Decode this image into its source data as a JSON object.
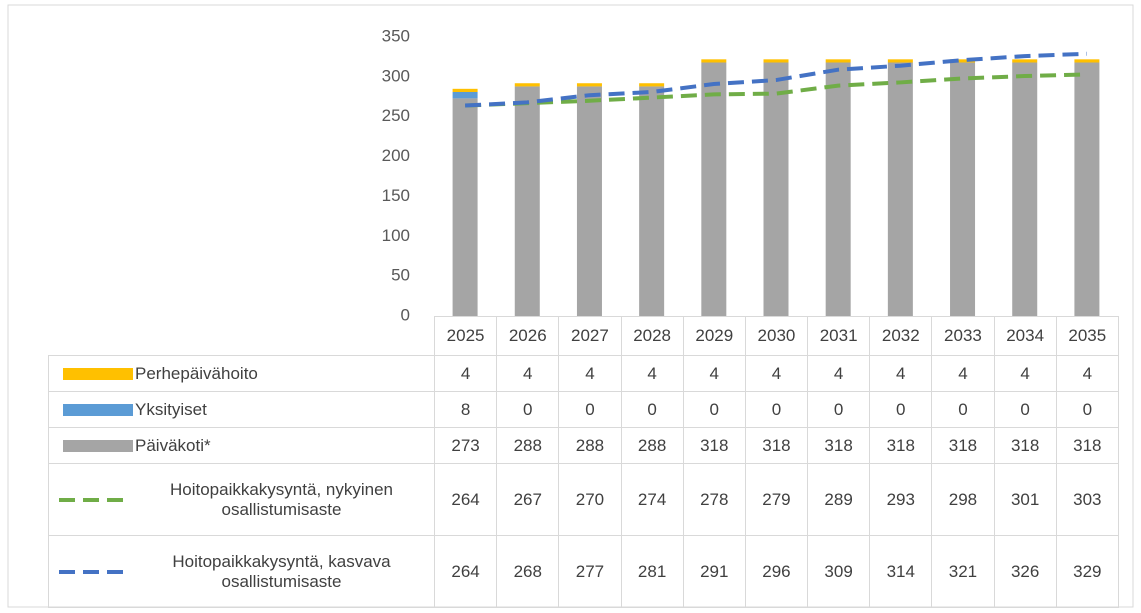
{
  "chart_data": {
    "type": "bar",
    "categories": [
      "2025",
      "2026",
      "2027",
      "2028",
      "2029",
      "2030",
      "2031",
      "2032",
      "2033",
      "2034",
      "2035"
    ],
    "series": [
      {
        "name": "Perhepäivähoito",
        "type": "bar",
        "color": "#ffc000",
        "values": [
          4,
          4,
          4,
          4,
          4,
          4,
          4,
          4,
          4,
          4,
          4
        ]
      },
      {
        "name": "Yksityiset",
        "type": "bar",
        "color": "#5b9bd5",
        "values": [
          8,
          0,
          0,
          0,
          0,
          0,
          0,
          0,
          0,
          0,
          0
        ]
      },
      {
        "name": "Päiväkoti*",
        "type": "bar",
        "color": "#a5a5a5",
        "values": [
          273,
          288,
          288,
          288,
          318,
          318,
          318,
          318,
          318,
          318,
          318
        ]
      },
      {
        "name": "Hoitopaikkakysyntä, nykyinen osallistumisaste",
        "type": "line",
        "dashed": true,
        "color": "#70ad47",
        "values": [
          264,
          267,
          270,
          274,
          278,
          279,
          289,
          293,
          298,
          301,
          303
        ]
      },
      {
        "name": "Hoitopaikkakysyntä, kasvava osallistumisaste",
        "type": "line",
        "dashed": true,
        "color": "#4472c4",
        "values": [
          264,
          268,
          277,
          281,
          291,
          296,
          309,
          314,
          321,
          326,
          329
        ]
      }
    ],
    "ylim": [
      0,
      350
    ],
    "yticks": [
      0,
      50,
      100,
      150,
      200,
      250,
      300,
      350
    ],
    "grid": false
  }
}
